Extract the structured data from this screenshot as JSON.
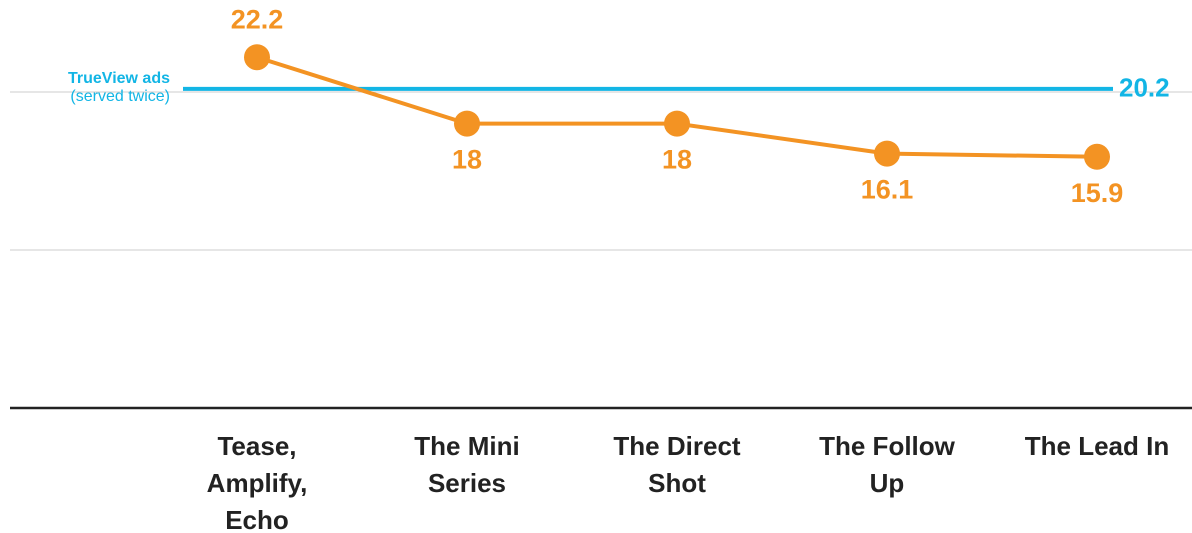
{
  "chart_data": {
    "type": "line",
    "categories": [
      "Tease, Amplify, Echo",
      "The Mini Series",
      "The Direct Shot",
      "The Follow Up",
      "The Lead In"
    ],
    "series": [
      {
        "name": null,
        "color": "#f39323",
        "values": [
          22.2,
          18,
          18,
          16.1,
          15.9
        ]
      }
    ],
    "reference_line": {
      "value": 20.2,
      "label": "TrueView ads",
      "sublabel": "(served twice)",
      "color": "#12b5e5"
    },
    "ylim": [
      0,
      25
    ],
    "yticks": [
      0,
      10,
      20
    ],
    "grid": true
  }
}
